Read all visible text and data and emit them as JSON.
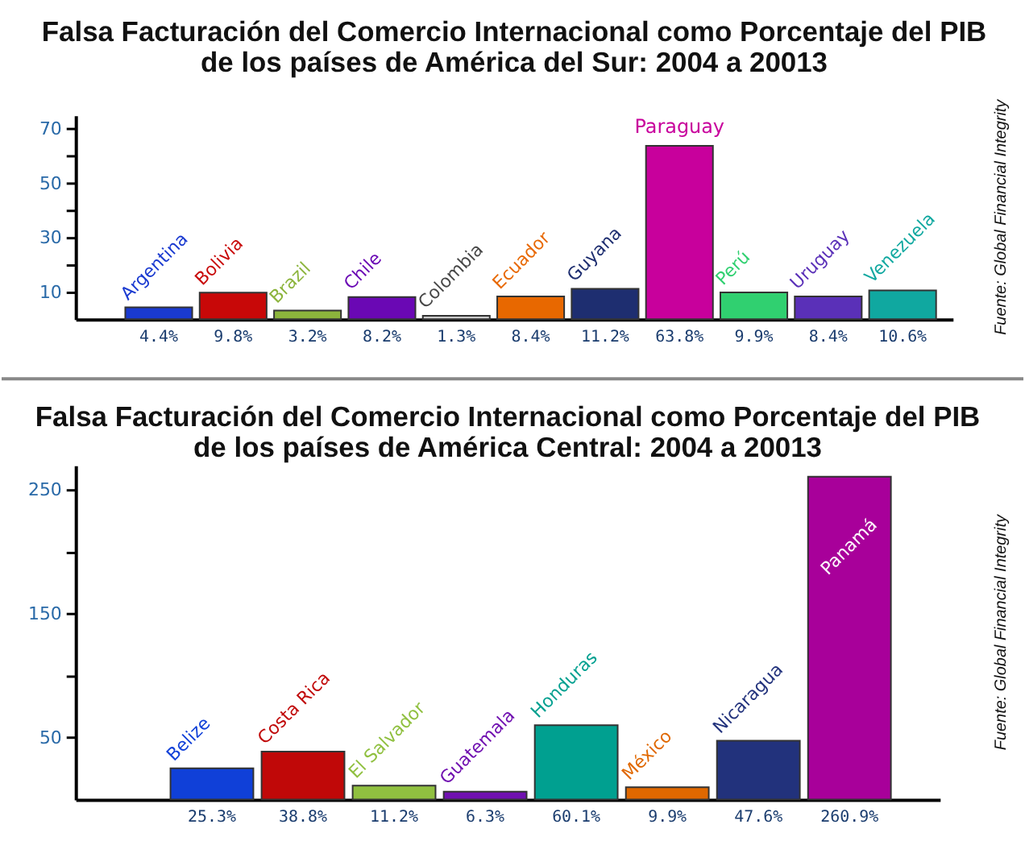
{
  "chart_data": [
    {
      "type": "bar",
      "title": "Falsa Facturación del Comercio Internacional como Porcentaje del PIB\nde los países de América del Sur: 2004 a 20013",
      "categories": [
        "Argentina",
        "Bolivia",
        "Brazil",
        "Chile",
        "Colombia",
        "Ecuador",
        "Guyana",
        "Paraguay",
        "Perú",
        "Uruguay",
        "Venezuela"
      ],
      "values": [
        4.4,
        9.8,
        3.2,
        8.2,
        1.3,
        8.4,
        11.2,
        63.8,
        9.9,
        8.4,
        10.6
      ],
      "colors": [
        "#1a3ad0",
        "#c80808",
        "#8cb43c",
        "#6a08b4",
        "#cccccc",
        "#e86800",
        "#1e2e70",
        "#c8009c",
        "#30d070",
        "#5a30b8",
        "#10a8a0"
      ],
      "value_labels": [
        "4.4%",
        "9.8%",
        "3.2%",
        "8.2%",
        "1.3%",
        "8.4%",
        "11.2%",
        "63.8%",
        "9.9%",
        "8.4%",
        "10.6%"
      ],
      "ylim": [
        0,
        75
      ],
      "yticks": [
        10,
        {
          "value": 20,
          "label": null
        },
        30,
        {
          "value": 40,
          "label": null
        },
        50,
        {
          "value": 60,
          "label": null
        },
        70
      ],
      "tick_labels": "y",
      "annotations": [
        "Fuente: Global Financial Integrity"
      ]
    },
    {
      "type": "bar",
      "title": "Falsa Facturación del Comercio Internacional como Porcentaje del PIB\nde los países de América Central: 2004 a 20013",
      "categories": [
        "Belize",
        "Costa Rica",
        "El Salvador",
        "Guatemala",
        "Honduras",
        "México",
        "Nicaragua",
        "Panamá"
      ],
      "values": [
        25.3,
        38.8,
        11.2,
        6.3,
        60.1,
        9.9,
        47.6,
        260.9
      ],
      "colors": [
        "#1040d8",
        "#c00808",
        "#90c040",
        "#7010b0",
        "#00a090",
        "#e06800",
        "#22327c",
        "#a8009a"
      ],
      "value_labels": [
        "25.3%",
        "38.8%",
        "11.2%",
        "6.3%",
        "60.1%",
        "9.9%",
        "47.6%",
        "260.9%"
      ],
      "ylim": [
        0,
        270
      ],
      "yticks": [
        50,
        {
          "value": 100,
          "label": null
        },
        150,
        {
          "value": 200,
          "label": null
        },
        250
      ],
      "tick_labels": "y",
      "annotations": [
        "Fuente: Global Financial Integrity"
      ]
    }
  ]
}
